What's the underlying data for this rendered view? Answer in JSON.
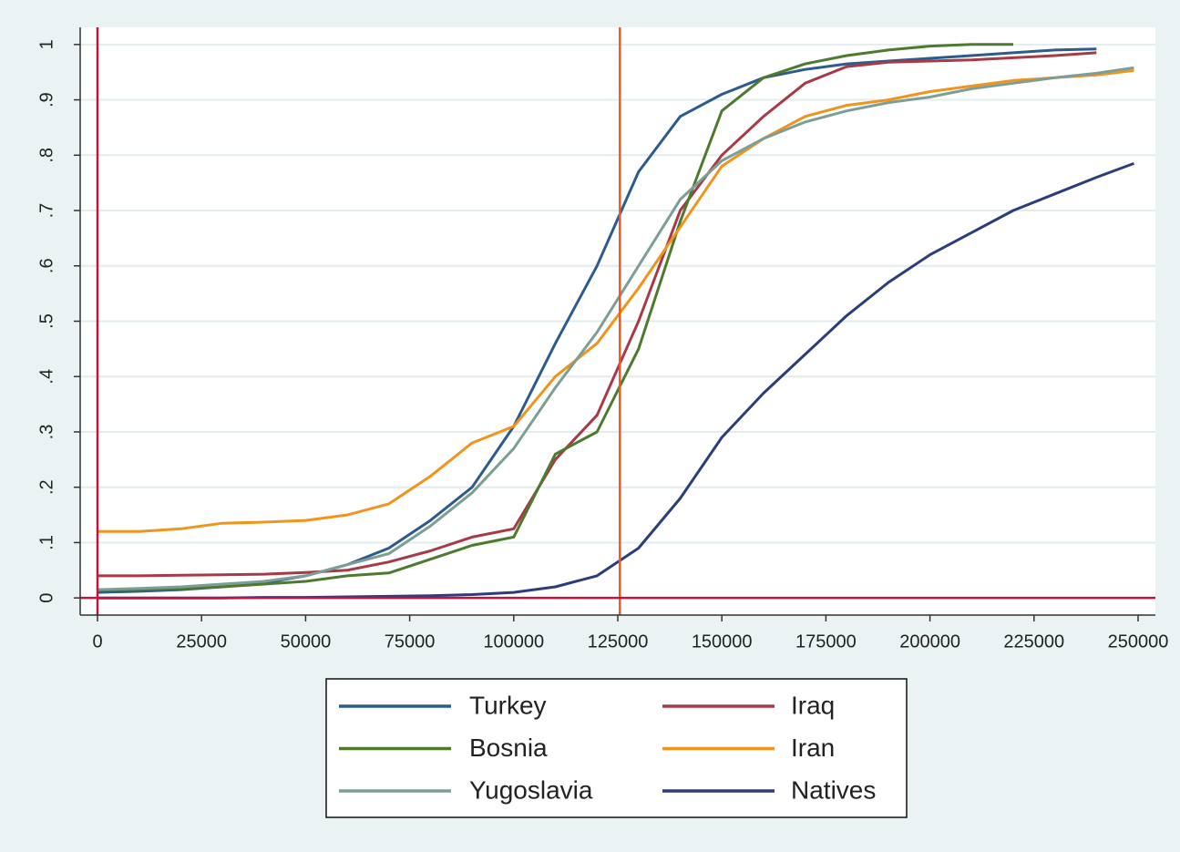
{
  "chart_data": {
    "type": "line",
    "x": [
      0,
      10000,
      20000,
      30000,
      40000,
      50000,
      60000,
      70000,
      80000,
      90000,
      100000,
      110000,
      120000,
      130000,
      140000,
      150000,
      160000,
      170000,
      180000,
      190000,
      200000,
      210000,
      220000,
      230000,
      240000,
      249000
    ],
    "series": [
      {
        "name": "Turkey",
        "color": "#2c5b8e",
        "values": [
          0.01,
          0.012,
          0.015,
          0.02,
          0.027,
          0.04,
          0.06,
          0.09,
          0.14,
          0.2,
          0.31,
          0.46,
          0.6,
          0.77,
          0.87,
          0.91,
          0.94,
          0.955,
          0.965,
          0.97,
          0.975,
          0.98,
          0.985,
          0.99,
          0.992,
          null
        ]
      },
      {
        "name": "Iraq",
        "color": "#a83a48",
        "values": [
          0.04,
          0.04,
          0.041,
          0.042,
          0.043,
          0.046,
          0.05,
          0.065,
          0.085,
          0.11,
          0.125,
          0.25,
          0.33,
          0.5,
          0.7,
          0.8,
          0.87,
          0.93,
          0.96,
          0.968,
          0.97,
          0.972,
          0.976,
          0.98,
          0.985,
          null
        ]
      },
      {
        "name": "Bosnia",
        "color": "#4e7a2e",
        "values": [
          0.015,
          0.015,
          0.017,
          0.02,
          0.025,
          0.03,
          0.04,
          0.045,
          0.07,
          0.095,
          0.11,
          0.26,
          0.3,
          0.45,
          0.68,
          0.88,
          0.94,
          0.965,
          0.98,
          0.99,
          0.997,
          1,
          1,
          null,
          null,
          null
        ]
      },
      {
        "name": "Iran",
        "color": "#f0941c",
        "values": [
          0.12,
          0.12,
          0.125,
          0.135,
          0.137,
          0.14,
          0.15,
          0.17,
          0.22,
          0.28,
          0.31,
          0.4,
          0.46,
          0.56,
          0.67,
          0.78,
          0.83,
          0.87,
          0.89,
          0.9,
          0.915,
          0.925,
          0.935,
          0.94,
          0.945,
          0.953
        ]
      },
      {
        "name": "Yugoslavia",
        "color": "#7d9e96",
        "values": [
          0.015,
          0.017,
          0.02,
          0.025,
          0.03,
          0.04,
          0.06,
          0.08,
          0.13,
          0.19,
          0.27,
          0.38,
          0.48,
          0.6,
          0.72,
          0.79,
          0.83,
          0.86,
          0.88,
          0.895,
          0.905,
          0.92,
          0.93,
          0.94,
          0.948,
          0.958
        ]
      },
      {
        "name": "Natives",
        "color": "#2b3d7a",
        "values": [
          0,
          0,
          0,
          0,
          0.001,
          0.001,
          0.002,
          0.003,
          0.004,
          0.006,
          0.01,
          0.02,
          0.04,
          0.09,
          0.18,
          0.29,
          0.37,
          0.44,
          0.51,
          0.57,
          0.62,
          0.66,
          0.7,
          0.73,
          0.76,
          0.785
        ]
      }
    ],
    "xlim": [
      -4160,
      254160
    ],
    "ylim": [
      -0.031,
      1.031
    ],
    "xticks": [
      0,
      25000,
      50000,
      75000,
      100000,
      125000,
      150000,
      175000,
      200000,
      225000,
      250000
    ],
    "yticks": [
      0,
      {
        "value": 0.1,
        "label": ".1"
      },
      {
        "value": 0.2,
        "label": ".2"
      },
      {
        "value": 0.3,
        "label": ".3"
      },
      {
        "value": 0.4,
        "label": ".4"
      },
      {
        "value": 0.5,
        "label": ".5"
      },
      {
        "value": 0.6,
        "label": ".6"
      },
      {
        "value": 0.7,
        "label": ".7"
      },
      {
        "value": 0.8,
        "label": ".8"
      },
      {
        "value": 0.9,
        "label": ".9"
      },
      1
    ],
    "grid": true,
    "legend": "bottom",
    "reference_lines": [
      {
        "axis": "x",
        "value": 0,
        "color": "#c0143c"
      },
      {
        "axis": "x",
        "value": 125500,
        "color": "#f05a1e"
      },
      {
        "axis": "y",
        "value": 0,
        "color": "#c0143c"
      }
    ]
  }
}
